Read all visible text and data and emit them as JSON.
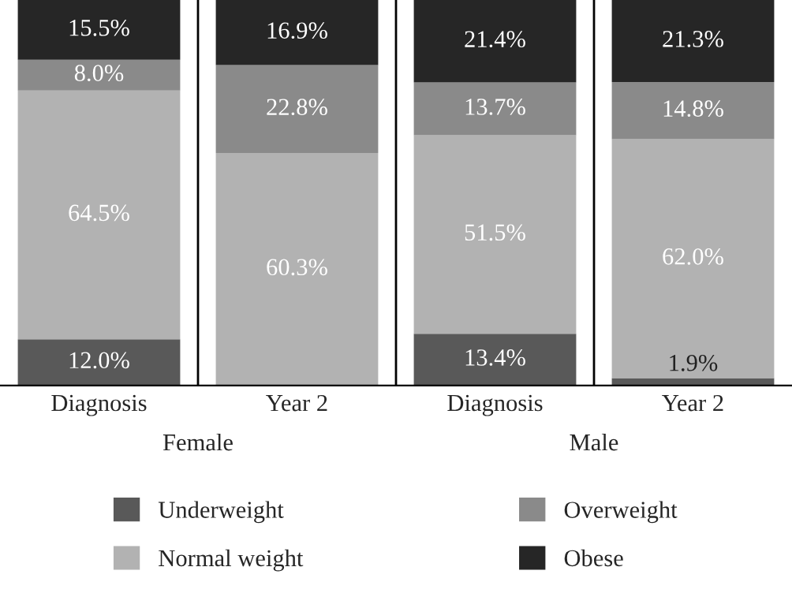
{
  "chart_data": {
    "type": "bar",
    "stacked": true,
    "categories": [
      "Diagnosis",
      "Year 2",
      "Diagnosis",
      "Year 2"
    ],
    "series": [
      {
        "name": "Underweight",
        "color": "#595959",
        "values": [
          12.0,
          0,
          13.4,
          1.9
        ],
        "value_labels": [
          "12.0%",
          null,
          "13.4%",
          "1.9%"
        ]
      },
      {
        "name": "Normal weight",
        "color": "#b2b2b2",
        "values": [
          64.5,
          60.3,
          51.5,
          62.0
        ],
        "value_labels": [
          "64.5%",
          "60.3%",
          "51.5%",
          "62.0%"
        ]
      },
      {
        "name": "Overweight",
        "color": "#8a8a8a",
        "values": [
          8.0,
          22.8,
          13.7,
          14.8
        ],
        "value_labels": [
          "8.0%",
          "22.8%",
          "13.7%",
          "14.8%"
        ]
      },
      {
        "name": "Obese",
        "color": "#262626",
        "values": [
          15.5,
          16.9,
          21.4,
          21.3
        ],
        "value_labels": [
          "15.5%",
          "16.9%",
          "21.4%",
          "21.3%"
        ]
      }
    ],
    "annotations": [
      "Female",
      "Male"
    ],
    "grid": "x",
    "legend": "bottom"
  }
}
